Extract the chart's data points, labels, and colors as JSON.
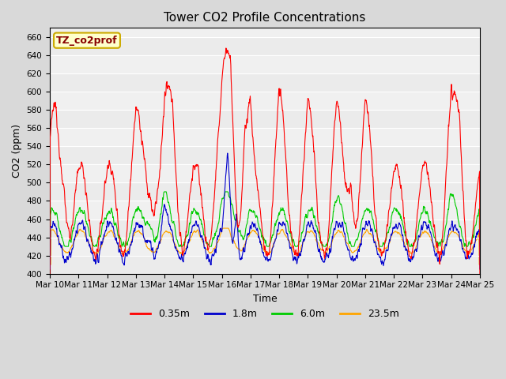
{
  "title": "Tower CO2 Profile Concentrations",
  "xlabel": "Time",
  "ylabel": "CO2 (ppm)",
  "ylim": [
    400,
    670
  ],
  "xlim": [
    0,
    360
  ],
  "series_labels": [
    "0.35m",
    "1.8m",
    "6.0m",
    "23.5m"
  ],
  "series_colors": [
    "#ff0000",
    "#0000cc",
    "#00cc00",
    "#ffa500"
  ],
  "legend_label": "TZ_co2prof",
  "legend_box_facecolor": "#ffffcc",
  "legend_box_edgecolor": "#ccaa00",
  "legend_text_color": "#880000",
  "tick_labels": [
    "Mar 10",
    "Mar 11",
    "Mar 12",
    "Mar 13",
    "Mar 14",
    "Mar 15",
    "Mar 16",
    "Mar 17",
    "Mar 18",
    "Mar 19",
    "Mar 20",
    "Mar 21",
    "Mar 22",
    "Mar 23",
    "Mar 24",
    "Mar 25"
  ],
  "tick_positions": [
    0,
    24,
    48,
    72,
    96,
    120,
    144,
    168,
    192,
    216,
    240,
    264,
    288,
    312,
    336,
    360
  ],
  "yticks": [
    400,
    420,
    440,
    460,
    480,
    500,
    520,
    540,
    560,
    580,
    600,
    620,
    640,
    660
  ],
  "background_color": "#d9d9d9",
  "plot_bg_color": "#f0f0f0",
  "grid_color": "#ffffff",
  "n_points": 1441,
  "seed": 12345
}
